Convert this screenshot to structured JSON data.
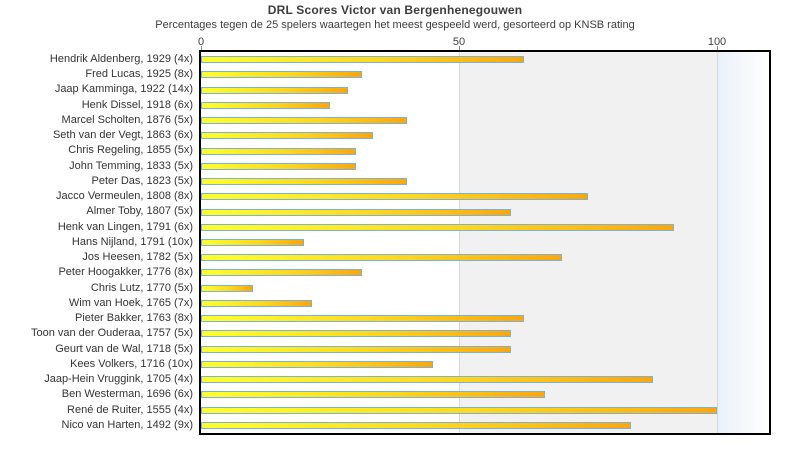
{
  "header": {
    "title": "DRL Scores Victor van Bergenhenegouwen",
    "subtitle": "Percentages tegen de 25 spelers waartegen het meest gespeeld werd, gesorteerd op KNSB rating"
  },
  "chart_data": {
    "type": "bar",
    "orientation": "horizontal",
    "title": "DRL Scores Victor van Bergenhenegouwen",
    "subtitle": "Percentages tegen de 25 spelers waartegen het meest gespeeld werd, gesorteerd op KNSB rating",
    "xlabel": "",
    "ylabel": "",
    "xlim": [
      0,
      110
    ],
    "xticks": [
      0,
      50,
      100
    ],
    "legend": "none",
    "grid": "background-bands at 0-50 white, 50-100 grey, 100+ pale blue",
    "categories": [
      "Hendrik Aldenberg, 1929 (4x)",
      "Fred Lucas, 1925 (8x)",
      "Jaap Kamminga, 1922 (14x)",
      "Henk Dissel, 1918 (6x)",
      "Marcel Scholten, 1876 (5x)",
      "Seth van der Vegt, 1863 (6x)",
      "Chris Regeling, 1855 (5x)",
      "John Temming, 1833 (5x)",
      "Peter Das, 1823 (5x)",
      "Jacco Vermeulen, 1808 (8x)",
      "Almer Toby, 1807 (5x)",
      "Henk van Lingen, 1791 (6x)",
      "Hans Nijland, 1791 (10x)",
      "Jos Heesen, 1782 (5x)",
      "Peter Hoogakker, 1776 (8x)",
      "Chris Lutz, 1770 (5x)",
      "Wim van Hoek, 1765 (7x)",
      "Pieter Bakker, 1763 (8x)",
      "Toon van der Ouderaa, 1757 (5x)",
      "Geurt van de Wal, 1718 (5x)",
      "Kees Volkers, 1716 (10x)",
      "Jaap-Hein Vruggink, 1705 (4x)",
      "Ben Westerman, 1696 (6x)",
      "René de Ruiter, 1555 (4x)",
      "Nico van Harten, 1492 (9x)"
    ],
    "values": [
      62.5,
      31.25,
      28.57,
      25,
      40,
      33.33,
      30,
      30,
      40,
      75,
      60,
      91.67,
      20,
      70,
      31.25,
      10,
      21.43,
      62.5,
      60,
      60,
      45,
      87.5,
      66.67,
      100,
      83.33
    ],
    "colors": {
      "bar_gradient_start": "#ffff2e",
      "bar_gradient_mid": "#ffd81e",
      "bar_gradient_end": "#fba70f",
      "bar_border": "#7cb2d8",
      "band_0_50": "#ffffff",
      "band_50_100": "#f1f1f2",
      "band_100_plus_start": "#e9f1f9",
      "band_100_plus_end": "#ffffff",
      "plot_border": "#000000",
      "text": "#3d3d3d"
    }
  }
}
